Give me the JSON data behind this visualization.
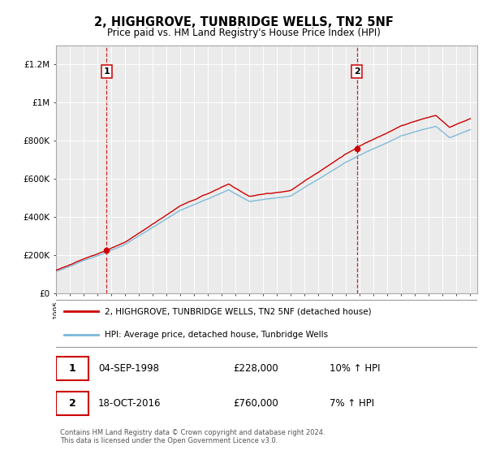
{
  "title": "2, HIGHGROVE, TUNBRIDGE WELLS, TN2 5NF",
  "subtitle": "Price paid vs. HM Land Registry's House Price Index (HPI)",
  "legend_line1": "2, HIGHGROVE, TUNBRIDGE WELLS, TN2 5NF (detached house)",
  "legend_line2": "HPI: Average price, detached house, Tunbridge Wells",
  "transaction1_label": "1",
  "transaction1_date": "04-SEP-1998",
  "transaction1_price": "£228,000",
  "transaction1_hpi": "10% ↑ HPI",
  "transaction2_label": "2",
  "transaction2_date": "18-OCT-2016",
  "transaction2_price": "£760,000",
  "transaction2_hpi": "7% ↑ HPI",
  "footer": "Contains HM Land Registry data © Crown copyright and database right 2024.\nThis data is licensed under the Open Government Licence v3.0.",
  "hpi_color": "#7ab8d9",
  "price_color": "#cc0000",
  "vline_color": "#cc0000",
  "background_color": "#ffffff",
  "plot_bg_color": "#ebebeb",
  "ylim": [
    0,
    1300000
  ],
  "xlim_start": 1995.0,
  "xlim_end": 2025.5,
  "transaction1_x": 1998.67,
  "transaction1_y": 228000,
  "transaction2_x": 2016.79,
  "transaction2_y": 760000,
  "yticks": [
    0,
    200000,
    400000,
    600000,
    800000,
    1000000,
    1200000
  ],
  "ylabels": [
    "£0",
    "£200K",
    "£400K",
    "£600K",
    "£800K",
    "£1M",
    "£1.2M"
  ]
}
